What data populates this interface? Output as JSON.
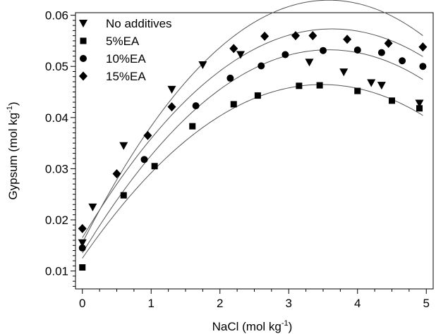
{
  "chart_data": {
    "type": "scatter",
    "title": "",
    "xlabel": "NaCl (mol kg",
    "xlabel_sup": "-1",
    "xlabel_close": ")",
    "ylabel": "Gypsum (mol kg",
    "ylabel_sup": "-1",
    "ylabel_close": ")",
    "xlim": [
      -0.1,
      5.1
    ],
    "ylim": [
      0.0065,
      0.0605
    ],
    "x_ticks": [
      0,
      1,
      2,
      3,
      4,
      5
    ],
    "x_tick_labels": [
      "0",
      "1",
      "2",
      "3",
      "4",
      "5"
    ],
    "y_ticks": [
      0.01,
      0.02,
      0.03,
      0.04,
      0.05,
      0.06
    ],
    "y_tick_labels": [
      "0.01",
      "0.02",
      "0.03",
      "0.04",
      "0.05",
      "0.06"
    ],
    "grid": false,
    "legend_position": "top-left",
    "series": [
      {
        "name": "No additives",
        "marker": "triangle-down",
        "color": "#000000",
        "x": [
          0,
          0.15,
          0.6,
          1.3,
          1.75,
          2.3,
          3.3,
          3.8,
          4.2,
          4.35,
          4.9
        ],
        "y": [
          0.0155,
          0.0225,
          0.0345,
          0.0455,
          0.0503,
          0.0523,
          0.0508,
          0.0489,
          0.0468,
          0.0463,
          0.0428
        ],
        "fit": [
          0.0155,
          0.0265,
          -0.0037
        ]
      },
      {
        "name": "5%EA",
        "marker": "square",
        "color": "#000000",
        "x": [
          0,
          0.6,
          1.05,
          1.6,
          2.2,
          2.55,
          3.15,
          3.45,
          4.0,
          4.5,
          4.9
        ],
        "y": [
          0.0107,
          0.0248,
          0.0305,
          0.0383,
          0.0426,
          0.0443,
          0.0462,
          0.0463,
          0.0452,
          0.0433,
          0.0418
        ],
        "fit": [
          0.0125,
          0.0195,
          -0.0028
        ]
      },
      {
        "name": "10%EA",
        "marker": "circle",
        "color": "#000000",
        "x": [
          0,
          0.9,
          1.65,
          2.15,
          2.6,
          2.95,
          3.5,
          4.0,
          4.35,
          4.65,
          4.95
        ],
        "y": [
          0.0145,
          0.0318,
          0.0423,
          0.0477,
          0.0501,
          0.0523,
          0.0531,
          0.0532,
          0.0527,
          0.0511,
          0.05
        ],
        "fit": [
          0.0135,
          0.0222,
          -0.0031
        ]
      },
      {
        "name": "15%EA",
        "marker": "diamond",
        "color": "#000000",
        "x": [
          0,
          0.5,
          0.95,
          1.3,
          2.2,
          2.65,
          3.1,
          3.35,
          3.85,
          4.45,
          4.95
        ],
        "y": [
          0.0183,
          0.029,
          0.0365,
          0.0421,
          0.0535,
          0.0559,
          0.056,
          0.056,
          0.0553,
          0.0545,
          0.0538
        ],
        "fit": [
          0.0165,
          0.0225,
          -0.0031
        ]
      }
    ]
  }
}
